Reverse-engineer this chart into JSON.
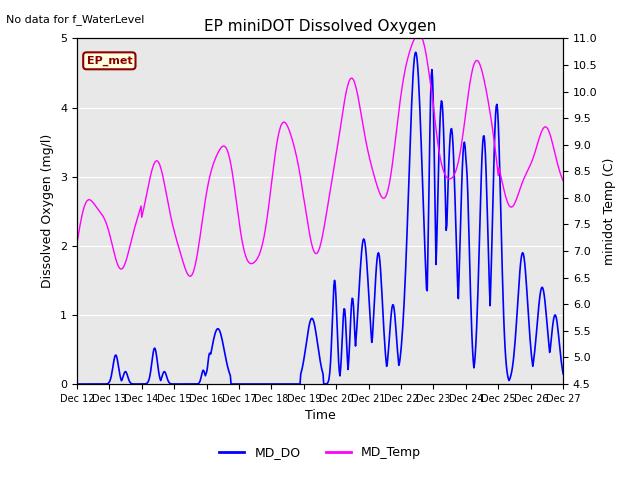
{
  "title": "EP miniDOT Dissolved Oxygen",
  "top_left_text": "No data for f_WaterLevel",
  "box_label": "EP_met",
  "xlabel": "Time",
  "ylabel_left": "Dissolved Oxygen (mg/l)",
  "ylabel_right": "minidot Temp (C)",
  "ylim_left": [
    0.0,
    5.0
  ],
  "ylim_right": [
    4.5,
    11.0
  ],
  "x_tick_labels": [
    "Dec 12",
    "Dec 13",
    "Dec 14",
    "Dec 15",
    "Dec 16",
    "Dec 17",
    "Dec 18",
    "Dec 19",
    "Dec 20",
    "Dec 21",
    "Dec 22",
    "Dec 23",
    "Dec 24",
    "Dec 25",
    "Dec 26",
    "Dec 27"
  ],
  "x_tick_positions": [
    0,
    1,
    2,
    3,
    4,
    5,
    6,
    7,
    8,
    9,
    10,
    11,
    12,
    13,
    14,
    15
  ],
  "bg_color": "#e8e8e8",
  "line_do_color": "blue",
  "line_temp_color": "magenta",
  "legend_do": "MD_DO",
  "legend_temp": "MD_Temp",
  "n_days": 15,
  "right_yticks": [
    4.5,
    5.0,
    5.5,
    6.0,
    6.5,
    7.0,
    7.5,
    8.0,
    8.5,
    9.0,
    9.5,
    10.0,
    10.5,
    11.0
  ]
}
